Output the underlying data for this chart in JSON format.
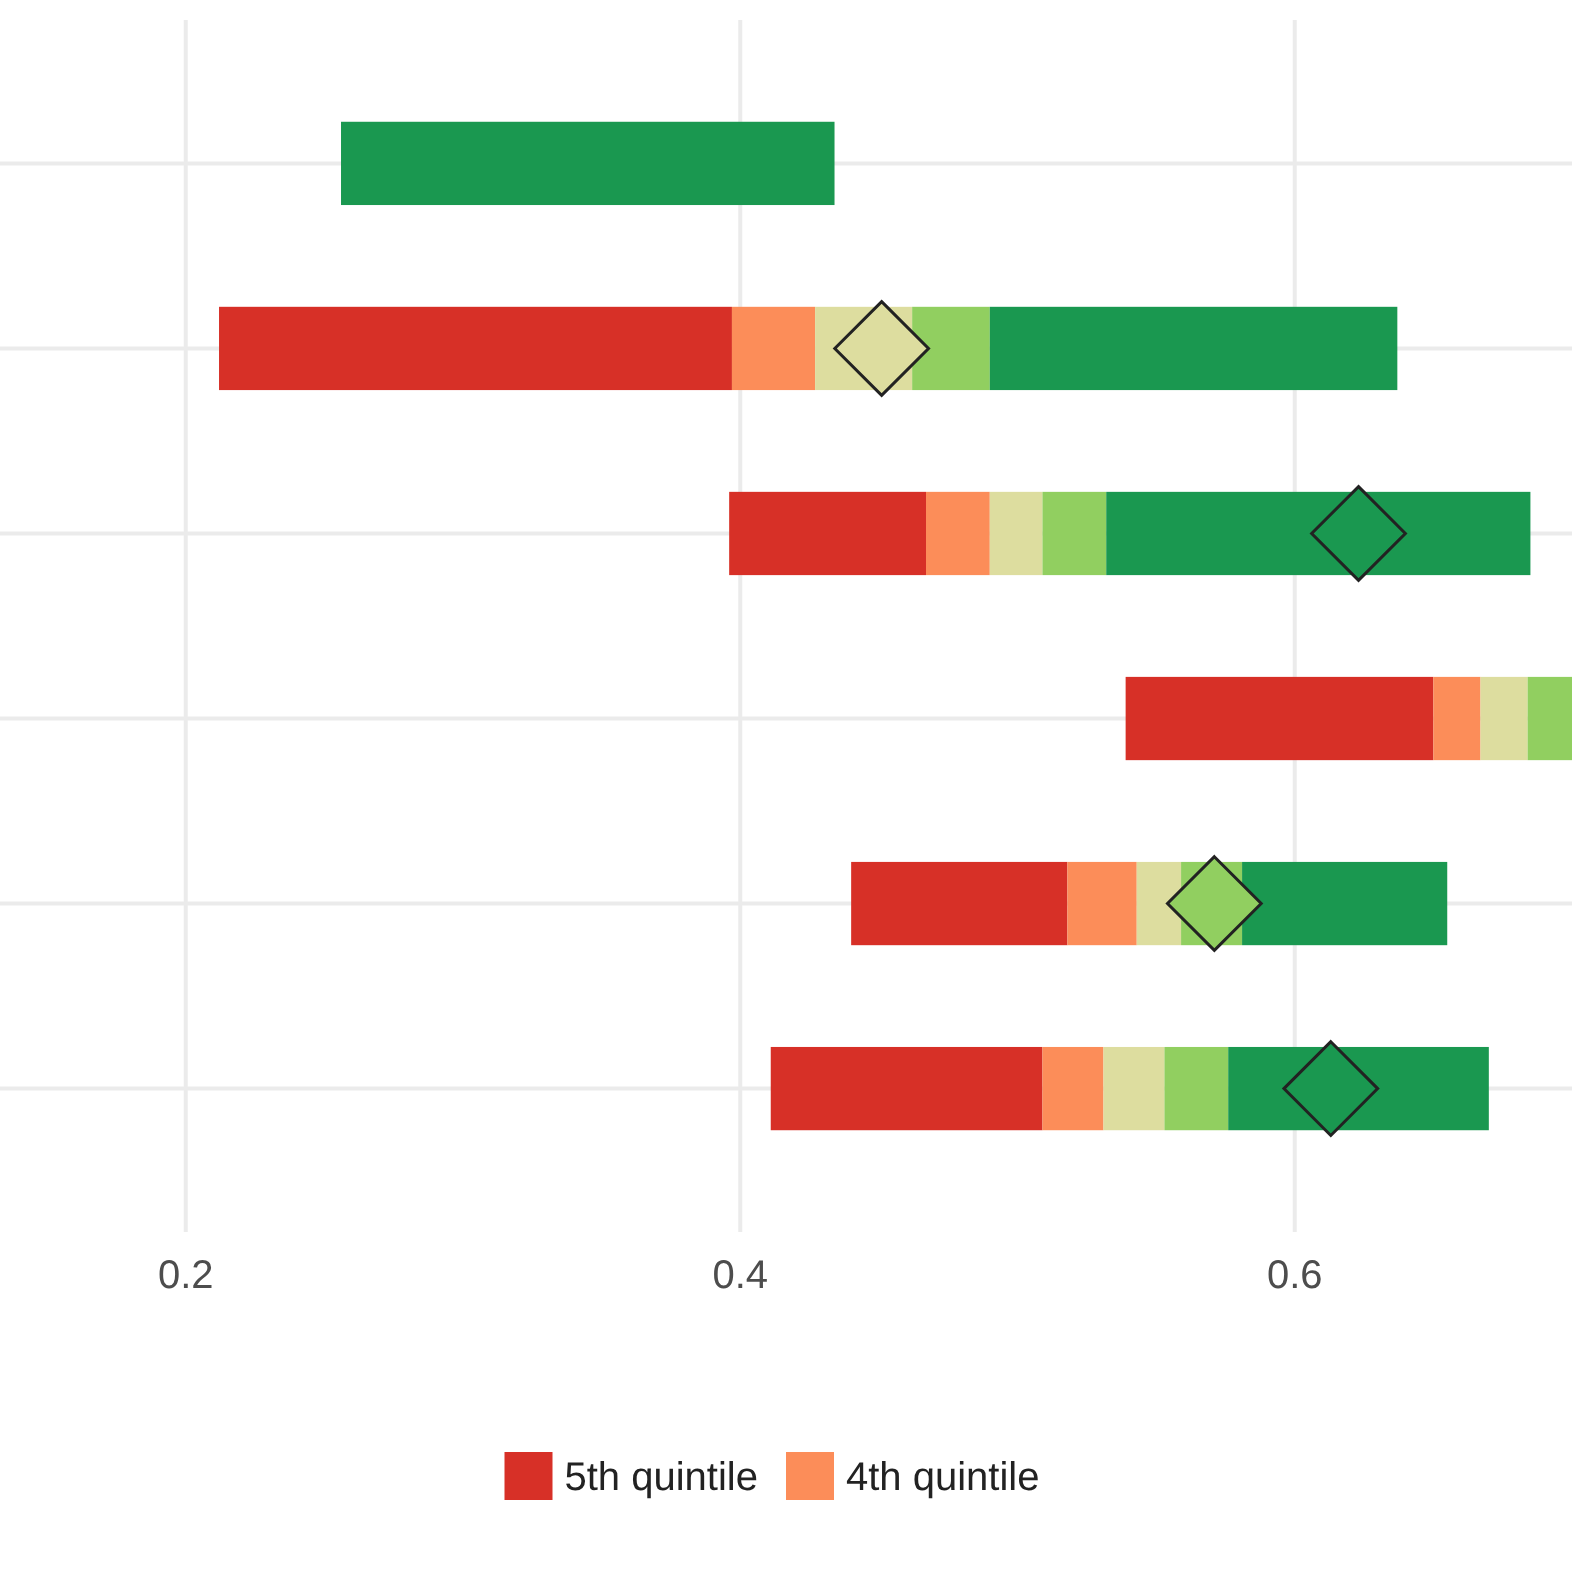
{
  "chart_data": {
    "type": "bar",
    "orientation": "horizontal",
    "categories": [
      null,
      null,
      null,
      null,
      null,
      null
    ],
    "series": [
      {
        "name": "5th quintile",
        "color": "#d73027",
        "base": [
          null,
          0.212,
          0.396,
          0.539,
          0.44,
          0.411
        ],
        "values": [
          null,
          0.185,
          0.071,
          0.111,
          0.078,
          0.098
        ]
      },
      {
        "name": "4th quintile",
        "color": "#fc8d59",
        "base": [
          null,
          0.397,
          0.467,
          0.65,
          0.518,
          0.509
        ],
        "values": [
          null,
          0.03,
          0.023,
          0.017,
          0.025,
          0.022
        ]
      },
      {
        "color": "#dddd9f",
        "base": [
          null,
          0.427,
          0.49,
          0.667,
          0.543,
          0.531
        ],
        "values": [
          null,
          0.035,
          0.019,
          0.017,
          0.016,
          0.022
        ]
      },
      {
        "color": "#91cf60",
        "base": [
          null,
          0.462,
          0.509,
          0.684,
          0.559,
          0.553
        ],
        "values": [
          null,
          0.028,
          0.023,
          0.016,
          0.022,
          0.023
        ]
      },
      {
        "color": "#1a9850",
        "base": [
          0.256,
          0.49,
          0.532,
          null,
          0.581,
          0.576
        ],
        "values": [
          0.178,
          0.147,
          0.153,
          null,
          0.074,
          0.094
        ]
      },
      {
        "type": "scatter",
        "marker": "diamond",
        "values": [
          null,
          0.451,
          0.623,
          null,
          0.571,
          0.613
        ],
        "colors": [
          null,
          "#dddd9f",
          "#1a9850",
          null,
          "#91cf60",
          "#1a9850"
        ]
      }
    ],
    "xlim": [
      0.133,
      0.7
    ],
    "xticks": [
      0.2,
      0.4,
      0.6
    ],
    "grid": true,
    "legend": "bottom"
  }
}
